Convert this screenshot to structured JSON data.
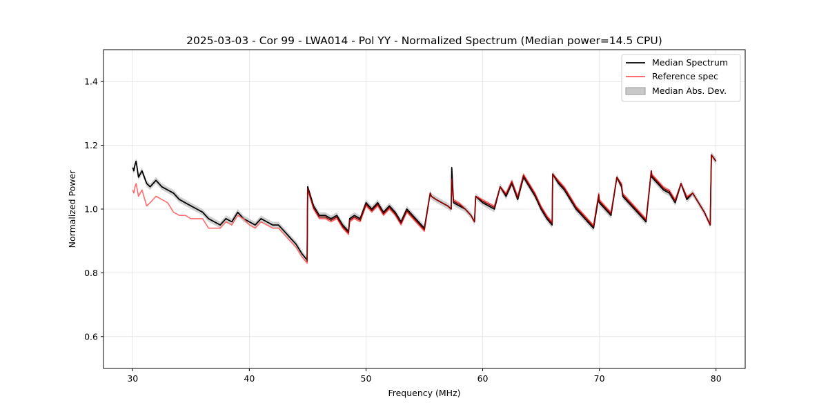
{
  "chart_data": {
    "type": "line",
    "title": "2025-03-03 - Cor 99 - LWA014 - Pol YY - Normalized Spectrum (Median power=14.5 CPU)",
    "xlabel": "Frequency (MHz)",
    "ylabel": "Normalized Power",
    "xlim": [
      27.5,
      82.5
    ],
    "ylim": [
      0.5,
      1.5
    ],
    "xticks": [
      30,
      40,
      50,
      60,
      70,
      80
    ],
    "yticks": [
      0.6,
      0.8,
      1.0,
      1.2,
      1.4
    ],
    "xtick_labels": [
      "30",
      "40",
      "50",
      "60",
      "70",
      "80"
    ],
    "ytick_labels": [
      "0.6",
      "0.8",
      "1.0",
      "1.2",
      "1.4"
    ],
    "grid": true,
    "legend_position": "top-right",
    "legend": [
      "Median Spectrum",
      "Reference spec",
      "Median Abs. Dev."
    ],
    "colors": {
      "median": "#000000",
      "reference": "#ff5a5a",
      "mad_fill": "#c8c8c8",
      "overlap": "#8b0000"
    },
    "series": [
      {
        "name": "Median Spectrum",
        "x": [
          30.0,
          30.1,
          30.2,
          30.3,
          30.5,
          30.8,
          31.2,
          31.5,
          32.0,
          32.5,
          33.0,
          33.5,
          34.0,
          34.5,
          35.0,
          35.5,
          36.0,
          36.5,
          37.0,
          37.5,
          38.0,
          38.5,
          39.0,
          39.5,
          40.0,
          40.5,
          41.0,
          41.5,
          42.0,
          42.5,
          43.0,
          43.5,
          44.0,
          44.5,
          44.95,
          45.0,
          45.5,
          46.0,
          46.5,
          47.0,
          47.5,
          48.0,
          48.5,
          48.6,
          49.0,
          49.5,
          50.0,
          50.5,
          51.0,
          51.5,
          52.0,
          52.5,
          53.0,
          53.5,
          54.0,
          54.5,
          55.0,
          55.5,
          55.6,
          56.0,
          56.5,
          57.0,
          57.3,
          57.35,
          57.5,
          58.0,
          58.5,
          59.0,
          59.3,
          59.4,
          60.0,
          60.5,
          61.0,
          61.5,
          62.0,
          62.5,
          63.0,
          63.5,
          64.0,
          64.5,
          65.0,
          65.5,
          65.95,
          66.0,
          66.5,
          67.0,
          67.5,
          68.0,
          68.5,
          69.0,
          69.5,
          69.95,
          70.0,
          70.5,
          71.0,
          71.5,
          71.9,
          72.0,
          72.5,
          73.0,
          73.5,
          74.0,
          74.45,
          74.5,
          75.0,
          75.5,
          76.0,
          76.5,
          77.0,
          77.5,
          78.0,
          78.5,
          79.0,
          79.5,
          79.6,
          80.0
        ],
        "values": [
          1.13,
          1.12,
          1.14,
          1.15,
          1.1,
          1.12,
          1.08,
          1.07,
          1.09,
          1.07,
          1.06,
          1.05,
          1.03,
          1.02,
          1.01,
          1.0,
          0.99,
          0.97,
          0.96,
          0.95,
          0.97,
          0.96,
          0.99,
          0.97,
          0.96,
          0.95,
          0.97,
          0.96,
          0.95,
          0.95,
          0.93,
          0.91,
          0.89,
          0.86,
          0.84,
          1.07,
          1.01,
          0.98,
          0.98,
          0.97,
          0.98,
          0.95,
          0.93,
          0.97,
          0.98,
          0.97,
          1.02,
          1.0,
          1.02,
          0.99,
          1.01,
          0.99,
          0.96,
          1.0,
          0.98,
          0.96,
          0.94,
          1.05,
          1.04,
          1.03,
          1.02,
          1.01,
          1.0,
          1.13,
          1.02,
          1.01,
          1.0,
          0.98,
          0.96,
          1.04,
          1.02,
          1.01,
          1.0,
          1.07,
          1.04,
          1.08,
          1.03,
          1.1,
          1.07,
          1.04,
          1.0,
          0.97,
          0.95,
          1.11,
          1.08,
          1.06,
          1.03,
          1.0,
          0.98,
          0.96,
          0.94,
          1.04,
          1.02,
          1.0,
          0.98,
          1.1,
          1.07,
          1.04,
          1.02,
          1.0,
          0.98,
          0.96,
          1.12,
          1.1,
          1.08,
          1.06,
          1.05,
          1.02,
          1.08,
          1.03,
          1.05,
          1.02,
          0.99,
          0.95,
          1.17,
          1.15
        ],
        "mad": 0.01
      },
      {
        "name": "Reference spec",
        "x": [
          30.0,
          30.1,
          30.2,
          30.3,
          30.5,
          30.8,
          31.2,
          31.5,
          32.0,
          32.5,
          33.0,
          33.5,
          34.0,
          34.5,
          35.0,
          35.5,
          36.0,
          36.5,
          37.0,
          37.5,
          38.0,
          38.5,
          39.0,
          39.5,
          40.0,
          40.5,
          41.0,
          41.5,
          42.0,
          42.5,
          43.0,
          43.5,
          44.0,
          44.5,
          44.95,
          45.0,
          45.5,
          46.0,
          46.5,
          47.0,
          47.5,
          48.0,
          48.5,
          48.6,
          49.0,
          49.5,
          50.0,
          50.5,
          51.0,
          51.5,
          52.0,
          52.5,
          53.0,
          53.5,
          54.0,
          54.5,
          55.0,
          55.5,
          55.6,
          56.0,
          56.5,
          57.0,
          57.3,
          57.35,
          57.5,
          58.0,
          58.5,
          59.0,
          59.3,
          59.4,
          60.0,
          60.5,
          61.0,
          61.5,
          62.0,
          62.5,
          63.0,
          63.5,
          64.0,
          64.5,
          65.0,
          65.5,
          65.95,
          66.0,
          66.5,
          67.0,
          67.5,
          68.0,
          68.5,
          69.0,
          69.5,
          69.95,
          70.0,
          70.5,
          71.0,
          71.5,
          71.9,
          72.0,
          72.5,
          73.0,
          73.5,
          74.0,
          74.45,
          74.5,
          75.0,
          75.5,
          76.0,
          76.5,
          77.0,
          77.5,
          78.0,
          78.5,
          79.0,
          79.5,
          79.6,
          80.0
        ],
        "values": [
          1.06,
          1.05,
          1.07,
          1.08,
          1.04,
          1.06,
          1.01,
          1.02,
          1.04,
          1.03,
          1.02,
          0.99,
          0.98,
          0.98,
          0.97,
          0.97,
          0.97,
          0.94,
          0.94,
          0.94,
          0.96,
          0.95,
          0.98,
          0.97,
          0.95,
          0.94,
          0.96,
          0.95,
          0.94,
          0.94,
          0.92,
          0.9,
          0.88,
          0.85,
          0.83,
          1.06,
          1.0,
          0.97,
          0.97,
          0.96,
          0.97,
          0.94,
          0.92,
          0.96,
          0.97,
          0.96,
          1.01,
          0.99,
          1.01,
          0.98,
          1.0,
          0.98,
          0.95,
          0.99,
          0.97,
          0.95,
          0.93,
          1.05,
          1.04,
          1.03,
          1.02,
          1.01,
          1.0,
          1.06,
          1.03,
          1.02,
          1.0,
          0.98,
          0.96,
          1.04,
          1.03,
          1.02,
          1.01,
          1.07,
          1.05,
          1.09,
          1.04,
          1.11,
          1.08,
          1.05,
          1.01,
          0.98,
          0.96,
          1.11,
          1.09,
          1.07,
          1.04,
          1.01,
          0.99,
          0.97,
          0.95,
          1.05,
          1.03,
          1.01,
          0.99,
          1.1,
          1.08,
          1.05,
          1.03,
          1.01,
          0.99,
          0.97,
          1.12,
          1.11,
          1.09,
          1.07,
          1.06,
          1.03,
          1.08,
          1.04,
          1.05,
          1.02,
          0.99,
          0.95,
          1.17,
          1.15
        ]
      }
    ]
  }
}
